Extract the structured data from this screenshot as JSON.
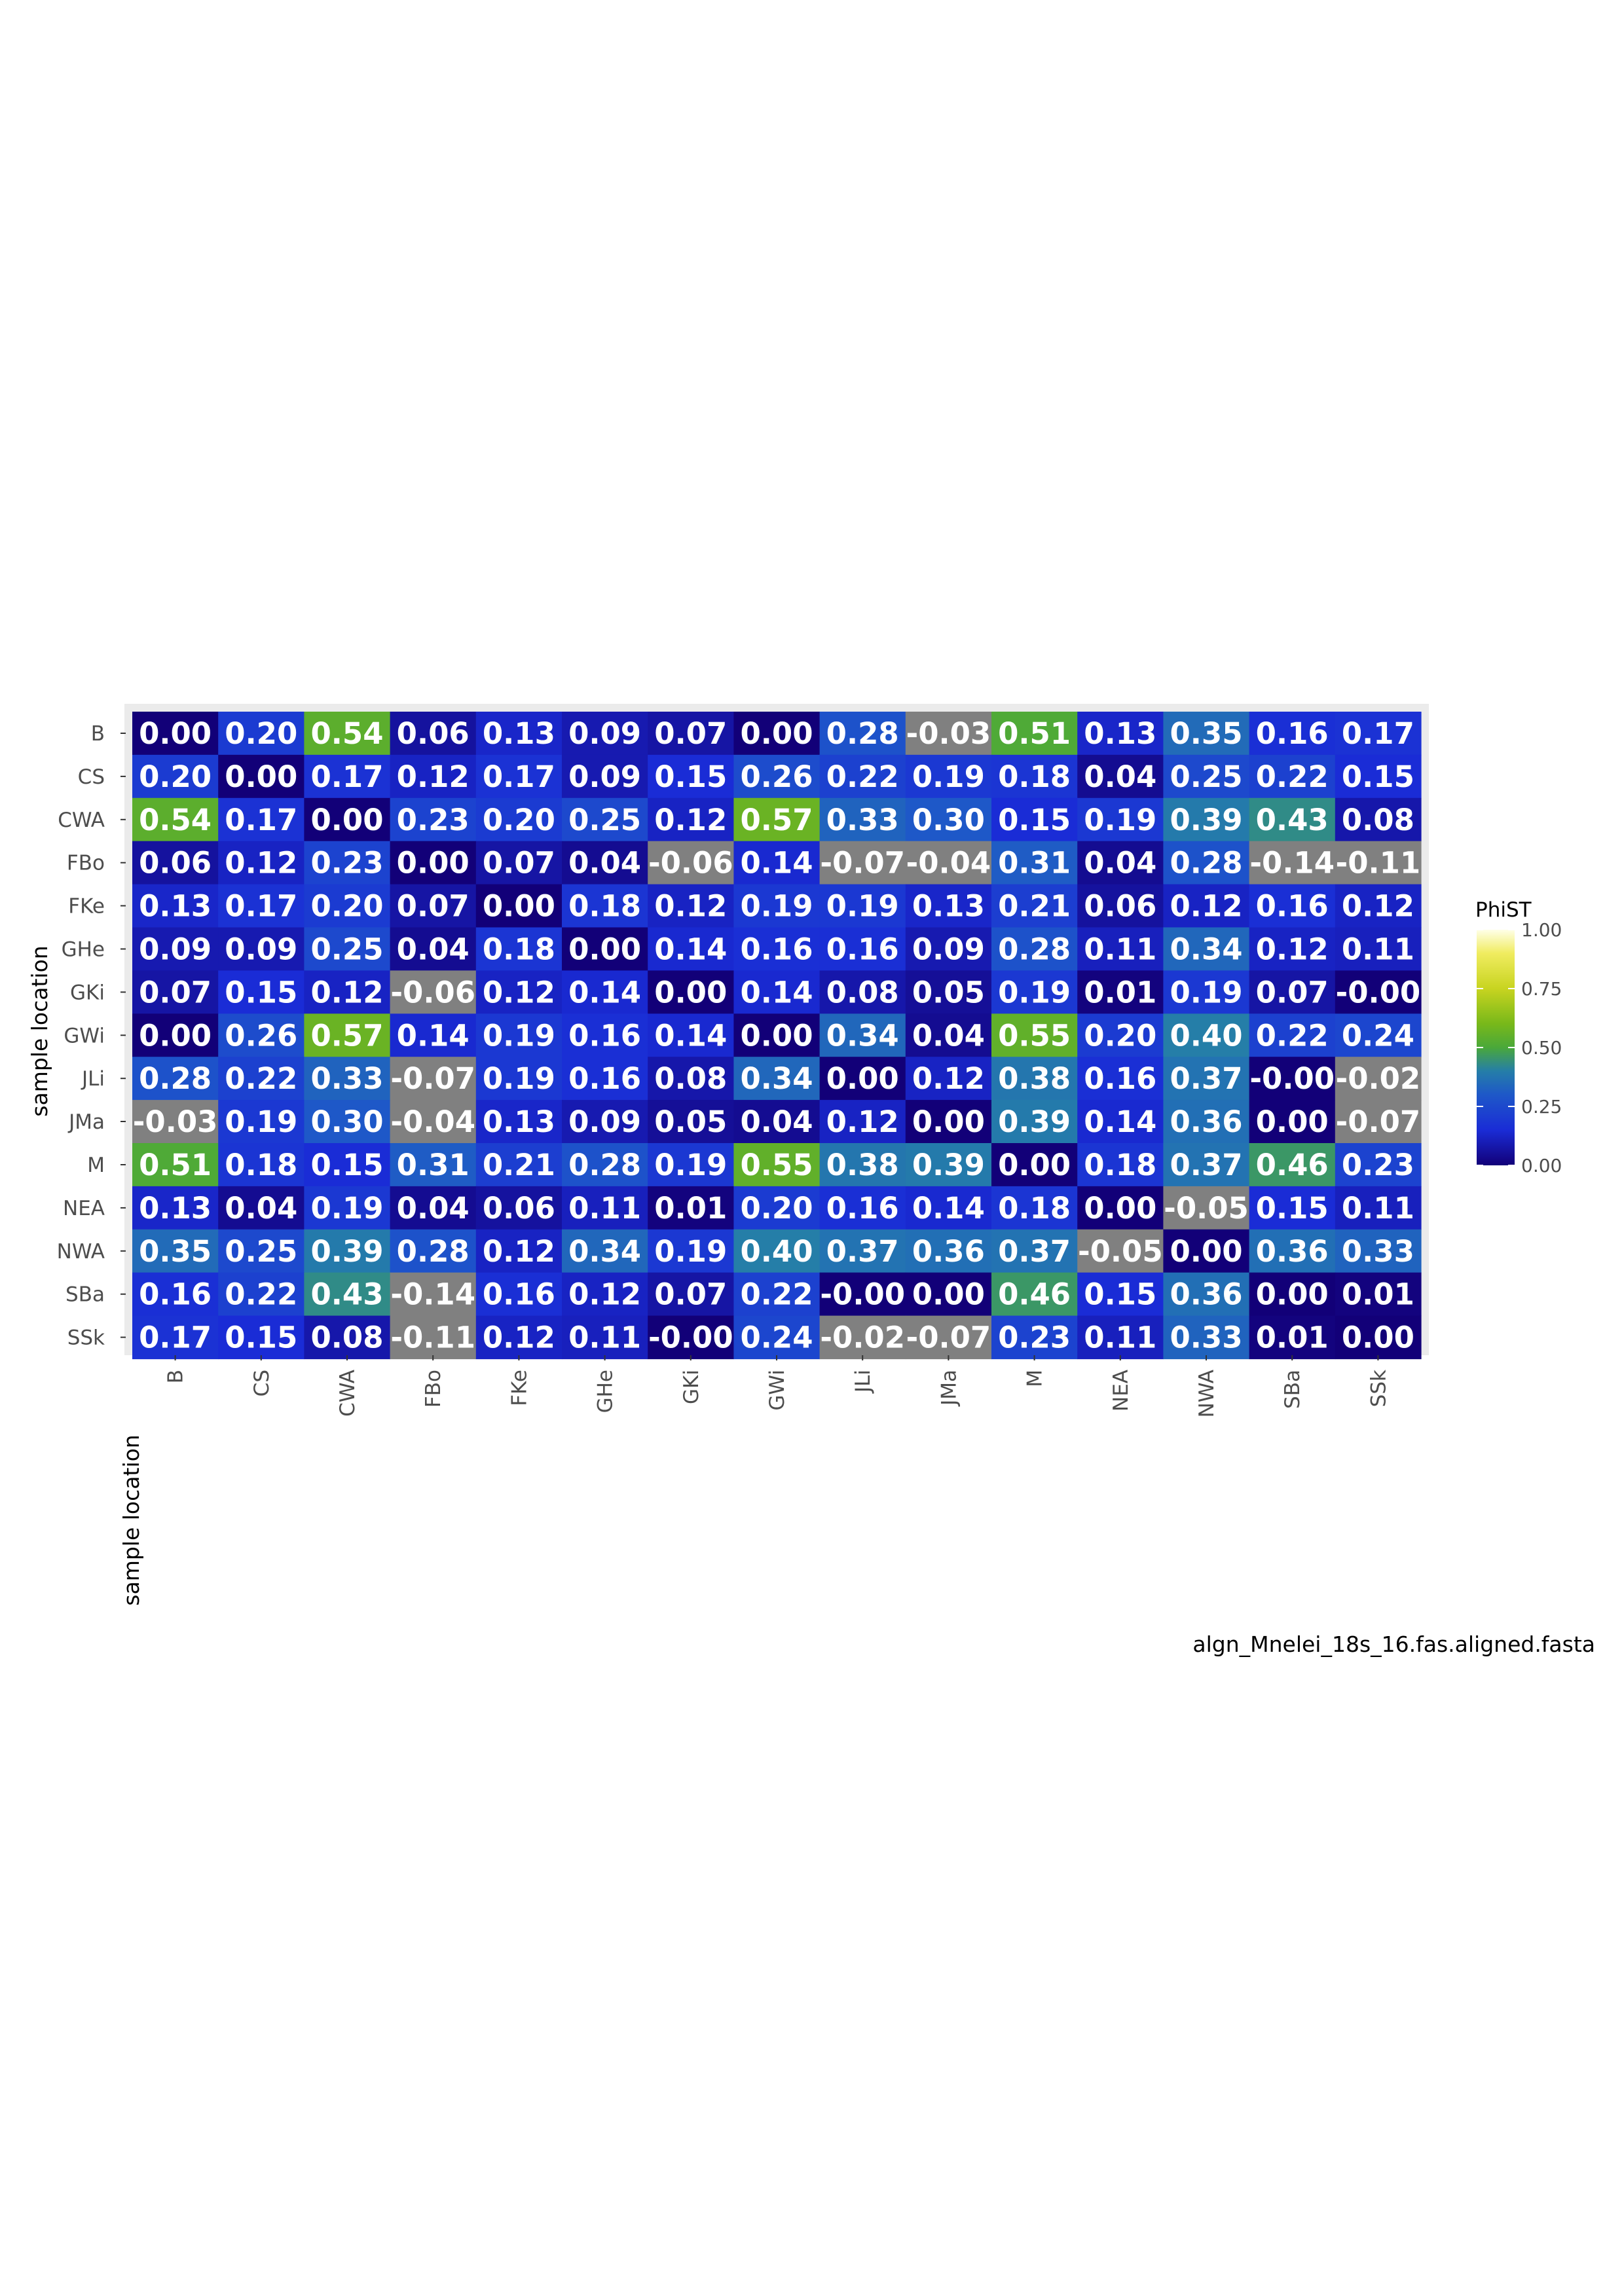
{
  "chart_data": {
    "type": "heatmap",
    "rows": [
      "B",
      "CS",
      "CWA",
      "FBo",
      "FKe",
      "GHe",
      "GKi",
      "GWi",
      "JLi",
      "JMa",
      "M",
      "NEA",
      "NWA",
      "SBa",
      "SSk"
    ],
    "columns": [
      "B",
      "CS",
      "CWA",
      "FBo",
      "FKe",
      "GHe",
      "GKi",
      "GWi",
      "JLi",
      "JMa",
      "M",
      "NEA",
      "NWA",
      "SBa",
      "SSk"
    ],
    "values": [
      [
        0.0,
        0.2,
        0.54,
        0.06,
        0.13,
        0.09,
        0.07,
        0.0,
        0.28,
        -0.03,
        0.51,
        0.13,
        0.35,
        0.16,
        0.17
      ],
      [
        0.2,
        0.0,
        0.17,
        0.12,
        0.17,
        0.09,
        0.15,
        0.26,
        0.22,
        0.19,
        0.18,
        0.04,
        0.25,
        0.22,
        0.15
      ],
      [
        0.54,
        0.17,
        0.0,
        0.23,
        0.2,
        0.25,
        0.12,
        0.57,
        0.33,
        0.3,
        0.15,
        0.19,
        0.39,
        0.43,
        0.08
      ],
      [
        0.06,
        0.12,
        0.23,
        0.0,
        0.07,
        0.04,
        -0.06,
        0.14,
        -0.07,
        -0.04,
        0.31,
        0.04,
        0.28,
        -0.14,
        -0.11
      ],
      [
        0.13,
        0.17,
        0.2,
        0.07,
        0.0,
        0.18,
        0.12,
        0.19,
        0.19,
        0.13,
        0.21,
        0.06,
        0.12,
        0.16,
        0.12
      ],
      [
        0.09,
        0.09,
        0.25,
        0.04,
        0.18,
        0.0,
        0.14,
        0.16,
        0.16,
        0.09,
        0.28,
        0.11,
        0.34,
        0.12,
        0.11
      ],
      [
        0.07,
        0.15,
        0.12,
        -0.06,
        0.12,
        0.14,
        0.0,
        0.14,
        0.08,
        0.05,
        0.19,
        0.01,
        0.19,
        0.07,
        -0.0
      ],
      [
        0.0,
        0.26,
        0.57,
        0.14,
        0.19,
        0.16,
        0.14,
        0.0,
        0.34,
        0.04,
        0.55,
        0.2,
        0.4,
        0.22,
        0.24
      ],
      [
        0.28,
        0.22,
        0.33,
        -0.07,
        0.19,
        0.16,
        0.08,
        0.34,
        0.0,
        0.12,
        0.38,
        0.16,
        0.37,
        -0.0,
        -0.02
      ],
      [
        -0.03,
        0.19,
        0.3,
        -0.04,
        0.13,
        0.09,
        0.05,
        0.04,
        0.12,
        0.0,
        0.39,
        0.14,
        0.36,
        0.0,
        -0.07
      ],
      [
        0.51,
        0.18,
        0.15,
        0.31,
        0.21,
        0.28,
        0.19,
        0.55,
        0.38,
        0.39,
        0.0,
        0.18,
        0.37,
        0.46,
        0.23
      ],
      [
        0.13,
        0.04,
        0.19,
        0.04,
        0.06,
        0.11,
        0.01,
        0.2,
        0.16,
        0.14,
        0.18,
        0.0,
        -0.05,
        0.15,
        0.11
      ],
      [
        0.35,
        0.25,
        0.39,
        0.28,
        0.12,
        0.34,
        0.19,
        0.4,
        0.37,
        0.36,
        0.37,
        -0.05,
        0.0,
        0.36,
        0.33
      ],
      [
        0.16,
        0.22,
        0.43,
        -0.14,
        0.16,
        0.12,
        0.07,
        0.22,
        -0.0,
        0.0,
        0.46,
        0.15,
        0.36,
        0.0,
        0.01
      ],
      [
        0.17,
        0.15,
        0.08,
        -0.11,
        0.12,
        0.11,
        -0.0,
        0.24,
        -0.02,
        -0.07,
        0.23,
        0.11,
        0.33,
        0.01,
        0.0
      ]
    ],
    "labels": [
      [
        "0.00",
        "0.20",
        "0.54",
        "0.06",
        "0.13",
        "0.09",
        "0.07",
        "0.00",
        "0.28",
        "-0.03",
        "0.51",
        "0.13",
        "0.35",
        "0.16",
        "0.17"
      ],
      [
        "0.20",
        "0.00",
        "0.17",
        "0.12",
        "0.17",
        "0.09",
        "0.15",
        "0.26",
        "0.22",
        "0.19",
        "0.18",
        "0.04",
        "0.25",
        "0.22",
        "0.15"
      ],
      [
        "0.54",
        "0.17",
        "0.00",
        "0.23",
        "0.20",
        "0.25",
        "0.12",
        "0.57",
        "0.33",
        "0.30",
        "0.15",
        "0.19",
        "0.39",
        "0.43",
        "0.08"
      ],
      [
        "0.06",
        "0.12",
        "0.23",
        "0.00",
        "0.07",
        "0.04",
        "-0.06",
        "0.14",
        "-0.07",
        "-0.04",
        "0.31",
        "0.04",
        "0.28",
        "-0.14",
        "-0.11"
      ],
      [
        "0.13",
        "0.17",
        "0.20",
        "0.07",
        "0.00",
        "0.18",
        "0.12",
        "0.19",
        "0.19",
        "0.13",
        "0.21",
        "0.06",
        "0.12",
        "0.16",
        "0.12"
      ],
      [
        "0.09",
        "0.09",
        "0.25",
        "0.04",
        "0.18",
        "0.00",
        "0.14",
        "0.16",
        "0.16",
        "0.09",
        "0.28",
        "0.11",
        "0.34",
        "0.12",
        "0.11"
      ],
      [
        "0.07",
        "0.15",
        "0.12",
        "-0.06",
        "0.12",
        "0.14",
        "0.00",
        "0.14",
        "0.08",
        "0.05",
        "0.19",
        "0.01",
        "0.19",
        "0.07",
        "-0.00"
      ],
      [
        "0.00",
        "0.26",
        "0.57",
        "0.14",
        "0.19",
        "0.16",
        "0.14",
        "0.00",
        "0.34",
        "0.04",
        "0.55",
        "0.20",
        "0.40",
        "0.22",
        "0.24"
      ],
      [
        "0.28",
        "0.22",
        "0.33",
        "-0.07",
        "0.19",
        "0.16",
        "0.08",
        "0.34",
        "0.00",
        "0.12",
        "0.38",
        "0.16",
        "0.37",
        "-0.00",
        "-0.02"
      ],
      [
        "-0.03",
        "0.19",
        "0.30",
        "-0.04",
        "0.13",
        "0.09",
        "0.05",
        "0.04",
        "0.12",
        "0.00",
        "0.39",
        "0.14",
        "0.36",
        "0.00",
        "-0.07"
      ],
      [
        "0.51",
        "0.18",
        "0.15",
        "0.31",
        "0.21",
        "0.28",
        "0.19",
        "0.55",
        "0.38",
        "0.39",
        "0.00",
        "0.18",
        "0.37",
        "0.46",
        "0.23"
      ],
      [
        "0.13",
        "0.04",
        "0.19",
        "0.04",
        "0.06",
        "0.11",
        "0.01",
        "0.20",
        "0.16",
        "0.14",
        "0.18",
        "0.00",
        "-0.05",
        "0.15",
        "0.11"
      ],
      [
        "0.35",
        "0.25",
        "0.39",
        "0.28",
        "0.12",
        "0.34",
        "0.19",
        "0.40",
        "0.37",
        "0.36",
        "0.37",
        "-0.05",
        "0.00",
        "0.36",
        "0.33"
      ],
      [
        "0.16",
        "0.22",
        "0.43",
        "-0.14",
        "0.16",
        "0.12",
        "0.07",
        "0.22",
        "-0.00",
        "0.00",
        "0.46",
        "0.15",
        "0.36",
        "0.00",
        "0.01"
      ],
      [
        "0.17",
        "0.15",
        "0.08",
        "-0.11",
        "0.12",
        "0.11",
        "-0.00",
        "0.24",
        "-0.02",
        "-0.07",
        "0.23",
        "0.11",
        "0.33",
        "0.01",
        "0.00"
      ]
    ],
    "xlabel": "sample location",
    "ylabel": "sample location",
    "caption": "algn_Mnelei_18s_16.fas.aligned.fasta",
    "legend": {
      "title": "PhiST",
      "placement": "right",
      "range": [
        0,
        1
      ],
      "ticks": [
        "0.00",
        "0.25",
        "0.50",
        "0.75",
        "1.00"
      ],
      "tick_values": [
        0,
        0.25,
        0.5,
        0.75,
        1.0
      ]
    },
    "colorscale": {
      "stops": [
        {
          "value": 0.0,
          "color": "#120078"
        },
        {
          "value": 0.15,
          "color": "#1a2cd6"
        },
        {
          "value": 0.3,
          "color": "#1e58c8"
        },
        {
          "value": 0.4,
          "color": "#257ea8"
        },
        {
          "value": 0.5,
          "color": "#4aa83a"
        },
        {
          "value": 0.6,
          "color": "#78b81a"
        },
        {
          "value": 0.75,
          "color": "#c8d420"
        },
        {
          "value": 0.9,
          "color": "#f0ec60"
        },
        {
          "value": 1.0,
          "color": "#ffffe8"
        }
      ],
      "na_color": "#808080"
    },
    "panel_background": "#ebebeb"
  }
}
